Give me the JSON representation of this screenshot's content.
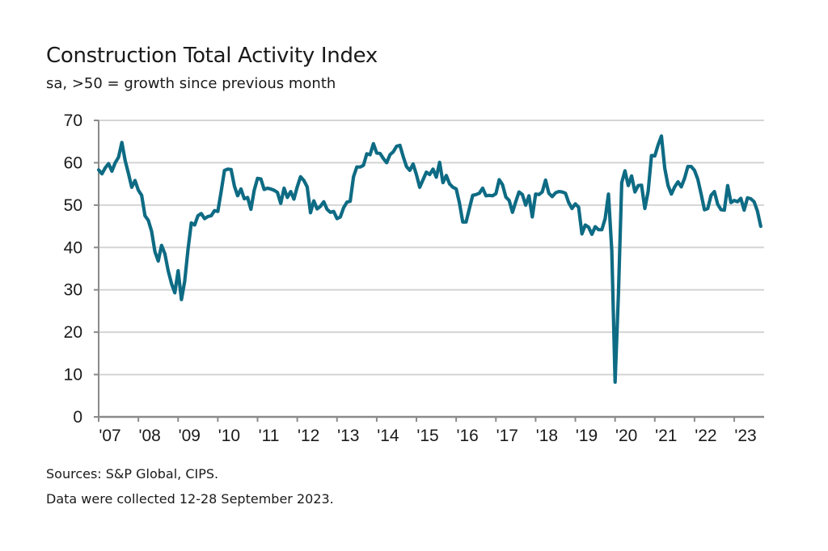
{
  "header": {
    "title": "Construction Total Activity Index",
    "subtitle": "sa, >50 = growth since previous month"
  },
  "footer": {
    "source": "Sources: S&P Global, CIPS.",
    "note": "Data were collected 12-28 September 2023."
  },
  "colors": {
    "line": "#0e6b84",
    "grid": "#d4d4d4",
    "axis": "#8a8a8a"
  },
  "chart_data": {
    "type": "line",
    "title": "Construction Total Activity Index",
    "subtitle": "sa, >50 = growth since previous month",
    "xlabel": "",
    "ylabel": "",
    "ylim": [
      0,
      70
    ],
    "yticks": [
      0,
      10,
      20,
      30,
      40,
      50,
      60,
      70
    ],
    "ytick_labels": [
      "0",
      "10",
      "20",
      "30",
      "40",
      "50",
      "60",
      "70"
    ],
    "xlim": [
      "2007-01",
      "2023-09"
    ],
    "xtick_labels": [
      "'07",
      "'08",
      "'09",
      "'10",
      "'11",
      "'12",
      "'13",
      "'14",
      "'15",
      "'16",
      "'17",
      "'18",
      "'19",
      "'20",
      "'21",
      "'22",
      "'23"
    ],
    "grid": true,
    "legend": "none",
    "series": [
      {
        "name": "Construction Total Activity Index",
        "start": "2007-01",
        "frequency": "monthly",
        "values": [
          58.3,
          57.4,
          58.8,
          59.8,
          58.0,
          60.0,
          61.3,
          64.8,
          60.5,
          57.5,
          54.2,
          55.8,
          53.5,
          52.3,
          47.5,
          46.4,
          43.8,
          39.0,
          36.8,
          40.5,
          38.5,
          34.5,
          31.5,
          29.3,
          34.5,
          27.7,
          32.0,
          39.5,
          45.8,
          45.3,
          47.5,
          48.0,
          46.8,
          47.3,
          47.5,
          48.7,
          48.5,
          53.2,
          58.2,
          58.5,
          58.4,
          54.5,
          52.2,
          53.8,
          51.5,
          51.8,
          49.0,
          53.5,
          56.3,
          56.2,
          53.7,
          54.0,
          53.8,
          53.5,
          53.0,
          50.4,
          54.0,
          51.8,
          53.2,
          51.4,
          54.3,
          56.7,
          55.8,
          54.3,
          48.2,
          51.0,
          49.1,
          49.7,
          50.8,
          49.0,
          48.3,
          48.5,
          46.8,
          47.2,
          49.4,
          50.7,
          50.9,
          56.7,
          59.0,
          59.0,
          59.4,
          62.1,
          61.9,
          64.5,
          62.3,
          62.2,
          61.0,
          60.0,
          61.9,
          62.6,
          63.9,
          64.1,
          61.5,
          59.1,
          58.2,
          59.7,
          57.2,
          54.2,
          56.0,
          57.8,
          57.2,
          58.5,
          56.6,
          60.1,
          55.3,
          57.0,
          55.0,
          54.2,
          53.8,
          50.5,
          46.0,
          46.0,
          49.2,
          52.3,
          52.5,
          52.8,
          54.0,
          52.2,
          52.3,
          52.2,
          52.7,
          56.0,
          54.8,
          51.9,
          51.1,
          48.3,
          50.8,
          53.1,
          52.5,
          50.0,
          52.2,
          47.2,
          52.6,
          52.5,
          53.1,
          55.9,
          52.8,
          52.0,
          52.9,
          53.2,
          53.1,
          52.8,
          50.6,
          49.2,
          50.3,
          49.5,
          43.2,
          45.3,
          44.8,
          43.1,
          44.9,
          44.2,
          44.2,
          46.8,
          52.6,
          39.3,
          8.2,
          28.9,
          55.3,
          58.1,
          54.6,
          56.9,
          53.1,
          54.6,
          54.7,
          49.2,
          53.3,
          61.7,
          61.6,
          64.2,
          66.3,
          58.7,
          54.6,
          52.6,
          54.3,
          55.5,
          54.3,
          56.3,
          59.1,
          59.1,
          58.2,
          56.1,
          52.6,
          48.9,
          49.2,
          52.3,
          53.2,
          50.2,
          48.9,
          48.8,
          54.6,
          50.6,
          51.1,
          50.8,
          51.6,
          48.8,
          51.7,
          51.5,
          50.8,
          48.6,
          45.0
        ]
      }
    ]
  }
}
